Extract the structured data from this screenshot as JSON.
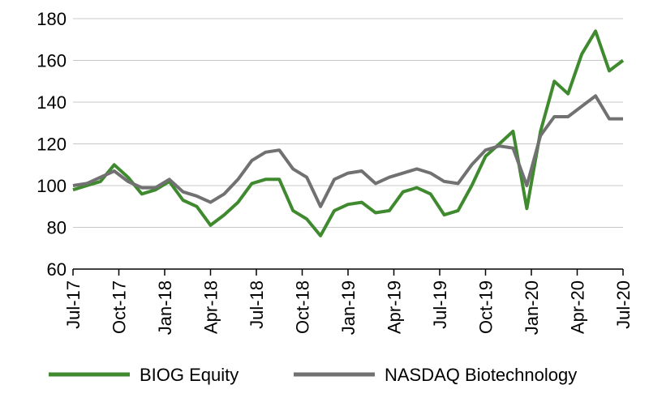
{
  "chart_data": {
    "type": "line",
    "title": "",
    "xlabel": "",
    "ylabel": "",
    "ylim": [
      60,
      180
    ],
    "yticks": [
      60,
      80,
      100,
      120,
      140,
      160,
      180
    ],
    "grid": "horizontal",
    "legend_position": "bottom",
    "x_ticks": [
      "Jul-17",
      "Oct-17",
      "Jan-18",
      "Apr-18",
      "Jul-18",
      "Oct-18",
      "Jan-19",
      "Apr-19",
      "Jul-19",
      "Oct-19",
      "Jan-20",
      "Apr-20",
      "Jul-20"
    ],
    "series": [
      {
        "name": "BIOG Equity",
        "color": "#3f8a2f",
        "points": [
          [
            "Jul-17",
            98
          ],
          [
            "Aug-17",
            100
          ],
          [
            "Sep-17",
            102
          ],
          [
            "Oct-17",
            110
          ],
          [
            "Oct-17b",
            104
          ],
          [
            "Nov-17",
            96
          ],
          [
            "Dec-17",
            98
          ],
          [
            "Jan-18",
            102
          ],
          [
            "Feb-18",
            93
          ],
          [
            "Mar-18",
            90
          ],
          [
            "Apr-18",
            81
          ],
          [
            "May-18",
            86
          ],
          [
            "Jun-18",
            92
          ],
          [
            "Jul-18",
            101
          ],
          [
            "Aug-18",
            103
          ],
          [
            "Sep-18",
            103
          ],
          [
            "Oct-18",
            88
          ],
          [
            "Nov-18",
            84
          ],
          [
            "Dec-18",
            76
          ],
          [
            "Jan-19",
            88
          ],
          [
            "Feb-19",
            91
          ],
          [
            "Mar-19",
            92
          ],
          [
            "Apr-19",
            87
          ],
          [
            "May-19",
            88
          ],
          [
            "Jun-19",
            97
          ],
          [
            "Jul-19",
            99
          ],
          [
            "Aug-19",
            96
          ],
          [
            "Sep-19",
            86
          ],
          [
            "Oct-19",
            88
          ],
          [
            "Nov-19",
            100
          ],
          [
            "Dec-19",
            114
          ],
          [
            "Jan-20",
            120
          ],
          [
            "Feb-20",
            126
          ],
          [
            "Mar-20",
            89
          ],
          [
            "Apr-20",
            126
          ],
          [
            "Apr-20b",
            150
          ],
          [
            "May-20",
            144
          ],
          [
            "Jun-20",
            163
          ],
          [
            "Jun-20b",
            174
          ],
          [
            "Jul-20",
            155
          ],
          [
            "Jul-20b",
            160
          ]
        ]
      },
      {
        "name": "NASDAQ Biotechnology",
        "color": "#717171",
        "points": [
          [
            "Jul-17",
            100
          ],
          [
            "Aug-17",
            101
          ],
          [
            "Sep-17",
            104
          ],
          [
            "Oct-17",
            107
          ],
          [
            "Oct-17b",
            102
          ],
          [
            "Nov-17",
            99
          ],
          [
            "Dec-17",
            99
          ],
          [
            "Jan-18",
            103
          ],
          [
            "Feb-18",
            97
          ],
          [
            "Mar-18",
            95
          ],
          [
            "Apr-18",
            92
          ],
          [
            "May-18",
            96
          ],
          [
            "Jun-18",
            103
          ],
          [
            "Jul-18",
            112
          ],
          [
            "Aug-18",
            116
          ],
          [
            "Sep-18",
            117
          ],
          [
            "Oct-18",
            108
          ],
          [
            "Nov-18",
            104
          ],
          [
            "Dec-18",
            90
          ],
          [
            "Jan-19",
            103
          ],
          [
            "Feb-19",
            106
          ],
          [
            "Mar-19",
            107
          ],
          [
            "Apr-19",
            101
          ],
          [
            "May-19",
            104
          ],
          [
            "Jun-19",
            106
          ],
          [
            "Jul-19",
            108
          ],
          [
            "Aug-19",
            106
          ],
          [
            "Sep-19",
            102
          ],
          [
            "Oct-19",
            101
          ],
          [
            "Nov-19",
            110
          ],
          [
            "Dec-19",
            117
          ],
          [
            "Jan-20",
            119
          ],
          [
            "Feb-20",
            118
          ],
          [
            "Mar-20",
            100
          ],
          [
            "Apr-20",
            124
          ],
          [
            "Apr-20b",
            133
          ],
          [
            "May-20",
            133
          ],
          [
            "Jun-20",
            138
          ],
          [
            "Jun-20b",
            143
          ],
          [
            "Jul-20",
            132
          ],
          [
            "Jul-20b",
            132
          ]
        ]
      }
    ]
  }
}
